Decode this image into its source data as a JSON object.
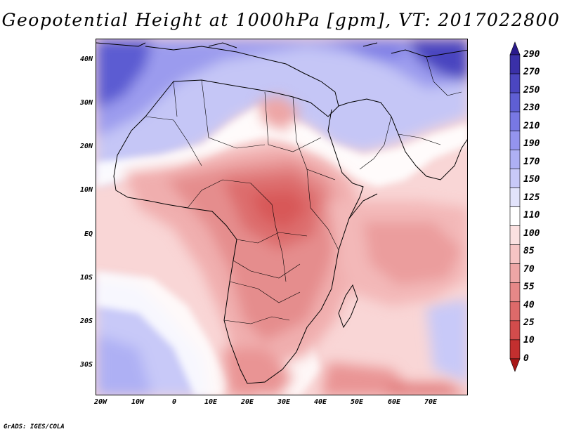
{
  "title": "Geopotential Height at 1000hPa [gpm], VT: 2017022800",
  "credit": "GrADS: IGES/COLA",
  "map": {
    "lat_labels": [
      "40N",
      "30N",
      "20N",
      "10N",
      "EQ",
      "10S",
      "20S",
      "30S"
    ],
    "lon_labels": [
      "20W",
      "10W",
      "0",
      "10E",
      "20E",
      "30E",
      "40E",
      "50E",
      "60E",
      "70E"
    ],
    "lon_range": [
      -22,
      80
    ],
    "lat_range": [
      -37,
      45
    ]
  },
  "colorbar": {
    "levels": [
      "290",
      "270",
      "250",
      "230",
      "210",
      "190",
      "170",
      "150",
      "125",
      "110",
      "100",
      "85",
      "70",
      "55",
      "40",
      "25",
      "10",
      "0"
    ],
    "colors": [
      "#2a1a8c",
      "#3a30a8",
      "#4b46c0",
      "#5f5fd4",
      "#7878e4",
      "#9494ee",
      "#aeb0f4",
      "#c8c9f8",
      "#e2e3fb",
      "#ffffff",
      "#fbe0e0",
      "#f6c4c4",
      "#eea6a6",
      "#e68888",
      "#dd6a6a",
      "#d24c4c",
      "#c32f2f",
      "#a81818"
    ]
  }
}
